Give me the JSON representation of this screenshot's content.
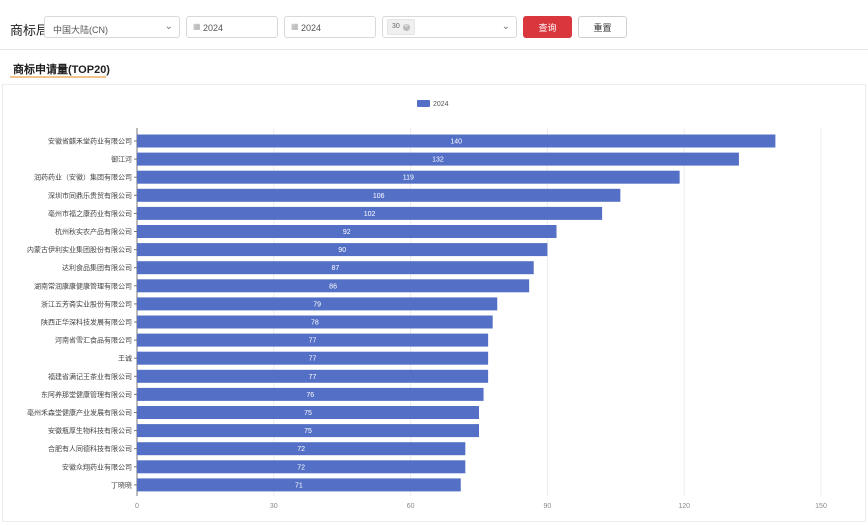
{
  "toolbar": {
    "label": "商标局",
    "region_value": "中国大陆(CN)",
    "start_year": "2024",
    "end_year": "2024",
    "topn_tag": "30",
    "query_label": "查询",
    "reset_label": "重置"
  },
  "section_title": "商标申请量(TOP20)",
  "colors": {
    "bar": "#5470c6",
    "query_button": "#d9363e",
    "title_underline": "#f2c38a"
  },
  "chart_data": {
    "type": "bar",
    "orientation": "horizontal",
    "series": [
      {
        "name": "2024"
      }
    ],
    "legend": "top-center",
    "grid": true,
    "xlim": [
      0,
      150
    ],
    "xticks": [
      0,
      30,
      60,
      90,
      120,
      150
    ],
    "categories": [
      "安徽省麒禾堂药业有限公司",
      "御江河",
      "润药药业（安徽）集团有限公司",
      "深圳市同鼎乐贵贸有限公司",
      "亳州市福之康药业有限公司",
      "杭州秋实农产品有限公司",
      "内蒙古伊利实业集团股份有限公司",
      "达利食品集团有限公司",
      "湖南常润康康健康管理有限公司",
      "浙江五芳斋实业股份有限公司",
      "陕西正华深科技发展有限公司",
      "河南省雪汇食品有限公司",
      "王诚",
      "福建省满记王茶业有限公司",
      "东阿养那堂健康管理有限公司",
      "亳州禾森堂健康产业发展有限公司",
      "安徽瓶厚生物科技有限公司",
      "合肥有人同德科技有限公司",
      "安徽众翔药业有限公司",
      "丁晓晓"
    ],
    "values": [
      140,
      132,
      119,
      106,
      102,
      92,
      90,
      87,
      86,
      79,
      78,
      77,
      77,
      77,
      76,
      75,
      75,
      72,
      72,
      71
    ]
  }
}
